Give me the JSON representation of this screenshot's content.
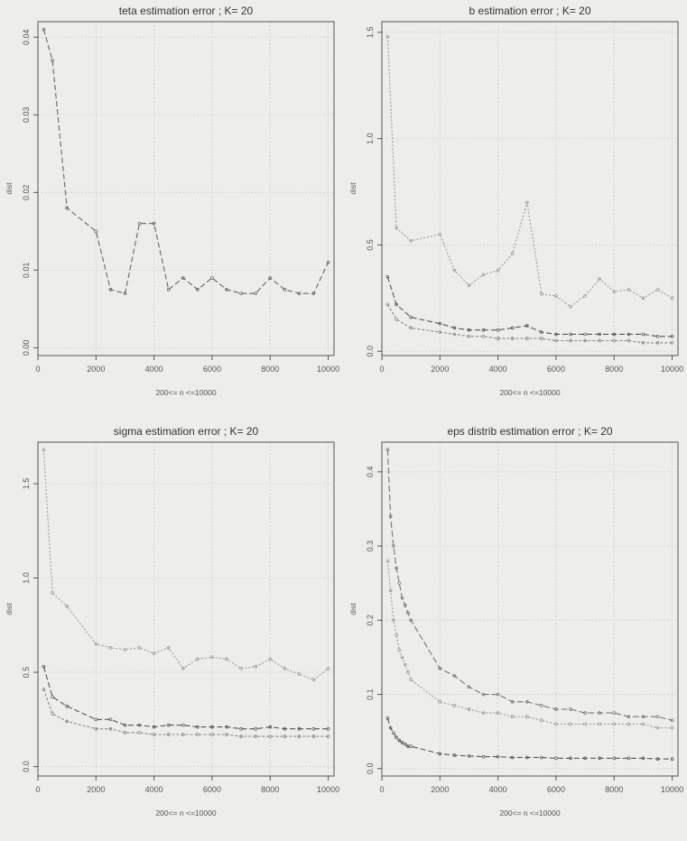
{
  "chart_data": [
    {
      "type": "line",
      "title": "teta estimation error ; K= 20",
      "xlabel": "200<= n <=10000",
      "ylabel": "dist",
      "xlim": [
        0,
        10200
      ],
      "ylim": [
        -0.001,
        0.042
      ],
      "xticks": [
        0,
        2000,
        4000,
        6000,
        8000,
        10000
      ],
      "yticks": [
        0.0,
        0.01,
        0.02,
        0.03,
        0.04
      ],
      "ytick_labels": [
        "0.00",
        "0.01",
        "0.02",
        "0.03",
        "0.04"
      ],
      "grid": true,
      "x": [
        200,
        500,
        1000,
        2000,
        2500,
        3000,
        3500,
        4000,
        4500,
        5000,
        5500,
        6000,
        6500,
        7000,
        7500,
        8000,
        8500,
        9000,
        9500,
        10000
      ],
      "series": [
        {
          "values": [
            0.041,
            0.037,
            0.018,
            0.015,
            0.0075,
            0.007,
            0.016,
            0.016,
            0.0075,
            0.009,
            0.0075,
            0.009,
            0.0075,
            0.007,
            0.007,
            0.009,
            0.0075,
            0.007,
            0.007,
            0.011
          ],
          "color": "#666666",
          "dash": "6,3"
        }
      ]
    },
    {
      "type": "line",
      "title": "b  estimation error ; K= 20",
      "xlabel": "200<= n <=10000",
      "ylabel": "dist",
      "xlim": [
        0,
        10200
      ],
      "ylim": [
        -0.02,
        1.55
      ],
      "xticks": [
        0,
        2000,
        4000,
        6000,
        8000,
        10000
      ],
      "yticks": [
        0.0,
        0.5,
        1.0,
        1.5
      ],
      "ytick_labels": [
        "0.0",
        "0.5",
        "1.0",
        "1.5"
      ],
      "grid": true,
      "x": [
        200,
        500,
        1000,
        2000,
        2500,
        3000,
        3500,
        4000,
        4500,
        5000,
        5500,
        6000,
        6500,
        7000,
        7500,
        8000,
        8500,
        9000,
        9500,
        10000
      ],
      "series": [
        {
          "values": [
            1.48,
            0.58,
            0.52,
            0.55,
            0.38,
            0.31,
            0.36,
            0.38,
            0.46,
            0.7,
            0.27,
            0.26,
            0.21,
            0.26,
            0.34,
            0.28,
            0.29,
            0.25,
            0.29,
            0.25
          ],
          "color": "#9a9a9a",
          "dash": "2,2"
        },
        {
          "values": [
            0.35,
            0.22,
            0.16,
            0.13,
            0.11,
            0.1,
            0.1,
            0.1,
            0.11,
            0.12,
            0.09,
            0.08,
            0.08,
            0.08,
            0.08,
            0.08,
            0.08,
            0.08,
            0.07,
            0.07
          ],
          "color": "#555555",
          "dash": "6,3"
        },
        {
          "values": [
            0.22,
            0.15,
            0.11,
            0.09,
            0.08,
            0.07,
            0.07,
            0.06,
            0.06,
            0.06,
            0.06,
            0.05,
            0.05,
            0.05,
            0.05,
            0.05,
            0.05,
            0.04,
            0.04,
            0.04
          ],
          "color": "#888888",
          "dash": "3,2"
        }
      ]
    },
    {
      "type": "line",
      "title": "sigma estimation error ; K= 20",
      "xlabel": "200<= n <=10000",
      "ylabel": "dist",
      "xlim": [
        0,
        10200
      ],
      "ylim": [
        -0.05,
        1.72
      ],
      "xticks": [
        0,
        2000,
        4000,
        6000,
        8000,
        10000
      ],
      "yticks": [
        0.0,
        0.5,
        1.0,
        1.5
      ],
      "ytick_labels": [
        "0.0",
        "0.5",
        "1.0",
        "1.5"
      ],
      "grid": true,
      "x": [
        200,
        500,
        1000,
        2000,
        2500,
        3000,
        3500,
        4000,
        4500,
        5000,
        5500,
        6000,
        6500,
        7000,
        7500,
        8000,
        8500,
        9000,
        9500,
        10000
      ],
      "series": [
        {
          "values": [
            1.68,
            0.92,
            0.85,
            0.65,
            0.63,
            0.62,
            0.63,
            0.6,
            0.63,
            0.52,
            0.57,
            0.58,
            0.57,
            0.52,
            0.53,
            0.57,
            0.52,
            0.49,
            0.46,
            0.52
          ],
          "color": "#9a9a9a",
          "dash": "2,2"
        },
        {
          "values": [
            0.53,
            0.37,
            0.32,
            0.25,
            0.25,
            0.22,
            0.22,
            0.21,
            0.22,
            0.22,
            0.21,
            0.21,
            0.21,
            0.2,
            0.2,
            0.21,
            0.2,
            0.2,
            0.2,
            0.2
          ],
          "color": "#555555",
          "dash": "6,3"
        },
        {
          "values": [
            0.41,
            0.28,
            0.24,
            0.2,
            0.2,
            0.18,
            0.18,
            0.17,
            0.17,
            0.17,
            0.17,
            0.17,
            0.17,
            0.16,
            0.16,
            0.16,
            0.16,
            0.16,
            0.16,
            0.16
          ],
          "color": "#888888",
          "dash": "3,2"
        }
      ]
    },
    {
      "type": "line",
      "title": "eps distrib estimation error ; K= 20",
      "xlabel": "200<= n <=10000",
      "ylabel": "dist",
      "xlim": [
        0,
        10200
      ],
      "ylim": [
        -0.01,
        0.44
      ],
      "xticks": [
        0,
        2000,
        4000,
        6000,
        8000,
        10000
      ],
      "yticks": [
        0.0,
        0.1,
        0.2,
        0.3,
        0.4
      ],
      "ytick_labels": [
        "0.0",
        "0.1",
        "0.2",
        "0.3",
        "0.4"
      ],
      "grid": true,
      "x": [
        200,
        300,
        400,
        500,
        600,
        700,
        800,
        900,
        1000,
        2000,
        2500,
        3000,
        3500,
        4000,
        4500,
        5000,
        5500,
        6000,
        6500,
        7000,
        7500,
        8000,
        8500,
        9000,
        9500,
        10000
      ],
      "series": [
        {
          "values": [
            0.43,
            0.34,
            0.3,
            0.27,
            0.25,
            0.23,
            0.22,
            0.21,
            0.2,
            0.135,
            0.125,
            0.11,
            0.1,
            0.1,
            0.09,
            0.09,
            0.085,
            0.08,
            0.08,
            0.075,
            0.075,
            0.075,
            0.07,
            0.07,
            0.07,
            0.065
          ],
          "color": "#777777",
          "dash": "7,3"
        },
        {
          "values": [
            0.28,
            0.24,
            0.2,
            0.18,
            0.16,
            0.15,
            0.14,
            0.13,
            0.12,
            0.09,
            0.085,
            0.08,
            0.075,
            0.075,
            0.07,
            0.07,
            0.065,
            0.06,
            0.06,
            0.06,
            0.06,
            0.06,
            0.06,
            0.06,
            0.055,
            0.055
          ],
          "color": "#9a9a9a",
          "dash": "2,2"
        },
        {
          "values": [
            0.068,
            0.055,
            0.048,
            0.042,
            0.038,
            0.035,
            0.033,
            0.03,
            0.03,
            0.02,
            0.018,
            0.017,
            0.016,
            0.016,
            0.015,
            0.015,
            0.015,
            0.014,
            0.014,
            0.014,
            0.014,
            0.014,
            0.014,
            0.014,
            0.013,
            0.013
          ],
          "color": "#555555",
          "dash": "6,3"
        }
      ]
    }
  ]
}
